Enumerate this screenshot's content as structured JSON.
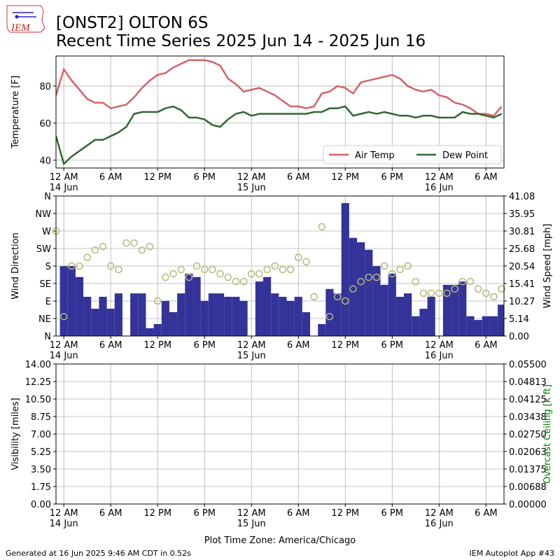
{
  "header": {
    "title": "[ONST2] OLTON 6S",
    "subtitle": "Recent Time Series 2025 Jun 14 - 2025 Jun 16",
    "logo": "IEM"
  },
  "footer": {
    "left": "Generated at 16 Jun 2025 9:46 AM CDT in 0.52s",
    "right": "IEM Autoplot App #43"
  },
  "chart_data": [
    {
      "type": "line",
      "ylabel": "Temperature [F]",
      "grid": true,
      "legend": "lower right",
      "xlim": [
        -1,
        56.3
      ],
      "ylim": [
        35.8,
        96.2
      ],
      "yticks": [
        40,
        60,
        80
      ],
      "xticks": [
        {
          "value": 0,
          "label": "12 AM\n14 Jun"
        },
        {
          "value": 6,
          "label": "6 AM"
        },
        {
          "value": 12,
          "label": "12 PM"
        },
        {
          "value": 18,
          "label": "6 PM"
        },
        {
          "value": 24,
          "label": "12 AM\n15 Jun"
        },
        {
          "value": 30,
          "label": "6 AM"
        },
        {
          "value": 36,
          "label": "12 PM"
        },
        {
          "value": 42,
          "label": "6 PM"
        },
        {
          "value": 48,
          "label": "12 AM\n16 Jun"
        },
        {
          "value": 54,
          "label": "6 AM"
        }
      ],
      "series": [
        {
          "name": "Air Temp",
          "color": "#d66266",
          "type": "line",
          "x": [
            -1,
            0,
            1,
            2,
            3,
            4,
            5,
            6,
            7,
            8,
            9,
            10,
            11,
            12,
            13,
            14,
            15,
            16,
            17,
            18,
            19,
            20,
            21,
            22,
            23,
            24,
            25,
            26,
            27,
            28,
            29,
            30,
            31,
            32,
            33,
            34,
            35,
            36,
            37,
            38,
            39,
            40,
            41,
            42,
            43,
            44,
            45,
            46,
            47,
            48,
            49,
            50,
            51,
            52,
            53,
            54,
            55,
            56
          ],
          "values": [
            75,
            89,
            83,
            78,
            73,
            71,
            71,
            68,
            69,
            70,
            74,
            79,
            83,
            86,
            87,
            90,
            92,
            94,
            94,
            94,
            93,
            91,
            84,
            81,
            77,
            78,
            79,
            77,
            75,
            72,
            69,
            69,
            68,
            69,
            76,
            77,
            80,
            79,
            76,
            82,
            83,
            84,
            85,
            86,
            84,
            80,
            78,
            77,
            78,
            75,
            74,
            71,
            70,
            68,
            65,
            65,
            64,
            69
          ]
        },
        {
          "name": "Dew Point",
          "color": "#336633",
          "type": "line",
          "x": [
            -1,
            0,
            1,
            2,
            3,
            4,
            5,
            6,
            7,
            8,
            9,
            10,
            11,
            12,
            13,
            14,
            15,
            16,
            17,
            18,
            19,
            20,
            21,
            22,
            23,
            24,
            25,
            26,
            27,
            28,
            29,
            30,
            31,
            32,
            33,
            34,
            35,
            36,
            37,
            38,
            39,
            40,
            41,
            42,
            43,
            44,
            45,
            46,
            47,
            48,
            49,
            50,
            51,
            52,
            53,
            54,
            55,
            56
          ],
          "values": [
            53,
            38,
            42,
            45,
            48,
            51,
            51,
            53,
            55,
            58,
            65,
            66,
            66,
            66,
            68,
            69,
            67,
            63,
            63,
            62,
            59,
            58,
            62,
            65,
            66,
            64,
            65,
            65,
            65,
            65,
            65,
            65,
            65,
            66,
            66,
            68,
            68,
            69,
            64,
            65,
            66,
            65,
            66,
            65,
            64,
            64,
            63,
            64,
            64,
            63,
            63,
            63,
            66,
            65,
            65,
            64,
            63,
            65
          ]
        }
      ]
    },
    {
      "type": "combo",
      "ylabel": "Wind Direction",
      "y2label": "Wind Speed [mph]",
      "grid": true,
      "xlim": [
        -1,
        56.3
      ],
      "ylim": [
        0,
        360
      ],
      "yticks": [
        {
          "value": 0,
          "label": "N"
        },
        {
          "value": 45,
          "label": "NE"
        },
        {
          "value": 90,
          "label": "E"
        },
        {
          "value": 135,
          "label": "SE"
        },
        {
          "value": 180,
          "label": "S"
        },
        {
          "value": 225,
          "label": "SW"
        },
        {
          "value": 270,
          "label": "W"
        },
        {
          "value": 315,
          "label": "NW"
        },
        {
          "value": 360,
          "label": "N"
        }
      ],
      "y2lim": [
        0,
        41.08
      ],
      "y2ticks": [
        {
          "value": 0,
          "label": "0.00"
        },
        5.14,
        10.27,
        15.41,
        20.54,
        25.68,
        30.81,
        35.95,
        41.08
      ],
      "xticks": [
        {
          "value": 0,
          "label": "12 AM\n14 Jun"
        },
        {
          "value": 6,
          "label": "6 AM"
        },
        {
          "value": 12,
          "label": "12 PM"
        },
        {
          "value": 18,
          "label": "6 PM"
        },
        {
          "value": 24,
          "label": "12 AM\n15 Jun"
        },
        {
          "value": 30,
          "label": "6 AM"
        },
        {
          "value": 36,
          "label": "12 PM"
        },
        {
          "value": 42,
          "label": "6 PM"
        },
        {
          "value": 48,
          "label": "12 AM\n16 Jun"
        },
        {
          "value": 54,
          "label": "6 AM"
        }
      ],
      "series": [
        {
          "type": "bar",
          "color": "#333399",
          "axis": "y2",
          "x": [
            0,
            1,
            2,
            3,
            4,
            5,
            6,
            7,
            8,
            9,
            10,
            11,
            12,
            13,
            14,
            15,
            16,
            17,
            18,
            19,
            20,
            21,
            22,
            23,
            24,
            25,
            26,
            27,
            28,
            29,
            30,
            31,
            32,
            33,
            34,
            35,
            36,
            37,
            38,
            39,
            40,
            41,
            42,
            43,
            44,
            45,
            46,
            47,
            48,
            49,
            50,
            51,
            52,
            53,
            54,
            55,
            56
          ],
          "values": [
            20.5,
            20.5,
            17.3,
            11.5,
            8,
            11.5,
            8,
            12.5,
            0,
            12.5,
            12.5,
            2.3,
            3.5,
            10.3,
            7,
            12.5,
            18.3,
            17.3,
            10.3,
            12.5,
            12.5,
            11.5,
            11.5,
            10.3,
            0,
            16,
            17.3,
            12.5,
            11.5,
            10.3,
            11.5,
            7,
            0,
            3.5,
            13.8,
            12.5,
            39,
            28.8,
            27.5,
            25.3,
            20.5,
            15,
            18.3,
            11.5,
            12.5,
            5.8,
            8,
            11.5,
            0,
            15,
            15,
            16,
            5.8,
            4.7,
            5.8,
            5.8,
            9.2
          ]
        },
        {
          "type": "scatter",
          "color": "#b5b97a",
          "x": [
            -1,
            0,
            1,
            2,
            3,
            4,
            5,
            6,
            7,
            8,
            9,
            10,
            11,
            12,
            13,
            14,
            15,
            16,
            17,
            18,
            19,
            20,
            21,
            22,
            23,
            24,
            25,
            26,
            27,
            28,
            29,
            30,
            31,
            32,
            33,
            34,
            35,
            36,
            37,
            38,
            39,
            40,
            41,
            42,
            43,
            44,
            45,
            46,
            47,
            48,
            49,
            50,
            51,
            52,
            53,
            54,
            55,
            56
          ],
          "values": [
            270,
            50,
            180,
            180,
            202,
            221,
            230,
            180,
            171,
            239,
            239,
            221,
            230,
            90,
            151,
            160,
            171,
            151,
            180,
            171,
            171,
            160,
            151,
            140,
            140,
            160,
            160,
            171,
            180,
            171,
            171,
            202,
            191,
            101,
            281,
            50,
            101,
            90,
            121,
            140,
            151,
            151,
            180,
            160,
            171,
            180,
            140,
            110,
            110,
            110,
            110,
            121,
            140,
            140,
            121,
            110,
            101,
            121
          ]
        }
      ]
    },
    {
      "type": "line",
      "ylabel": "Visibility [miles]",
      "y2label": "Overcast Ceiling [k ft]",
      "y2color": "#008000",
      "xlabel": "Plot Time Zone: America/Chicago",
      "grid": true,
      "xlim": [
        -1,
        56.3
      ],
      "ylim": [
        0,
        14
      ],
      "yticks": [
        {
          "value": 0,
          "label": "0.00"
        },
        1.75,
        {
          "value": 3.5,
          "label": "3.50"
        },
        5.25,
        {
          "value": 7,
          "label": "7.00"
        },
        8.75,
        {
          "value": 10.5,
          "label": "10.50"
        },
        12.25,
        {
          "value": 14,
          "label": "14.00"
        }
      ],
      "y2lim": [
        0,
        0.055
      ],
      "y2ticks": [
        {
          "value": 0,
          "label": "0.00000"
        },
        0.00688,
        0.01375,
        0.02063,
        {
          "value": 0.0275,
          "label": "0.02750"
        },
        0.03438,
        0.04125,
        0.04813,
        {
          "value": 0.055,
          "label": "0.05500"
        }
      ],
      "xticks": [
        {
          "value": 0,
          "label": "12 AM\n14 Jun"
        },
        {
          "value": 6,
          "label": "6 AM"
        },
        {
          "value": 12,
          "label": "12 PM"
        },
        {
          "value": 18,
          "label": "6 PM"
        },
        {
          "value": 24,
          "label": "12 AM\n15 Jun"
        },
        {
          "value": 30,
          "label": "6 AM"
        },
        {
          "value": 36,
          "label": "12 PM"
        },
        {
          "value": 42,
          "label": "6 PM"
        },
        {
          "value": 48,
          "label": "12 AM\n16 Jun"
        },
        {
          "value": 54,
          "label": "6 AM"
        }
      ],
      "series": []
    }
  ]
}
